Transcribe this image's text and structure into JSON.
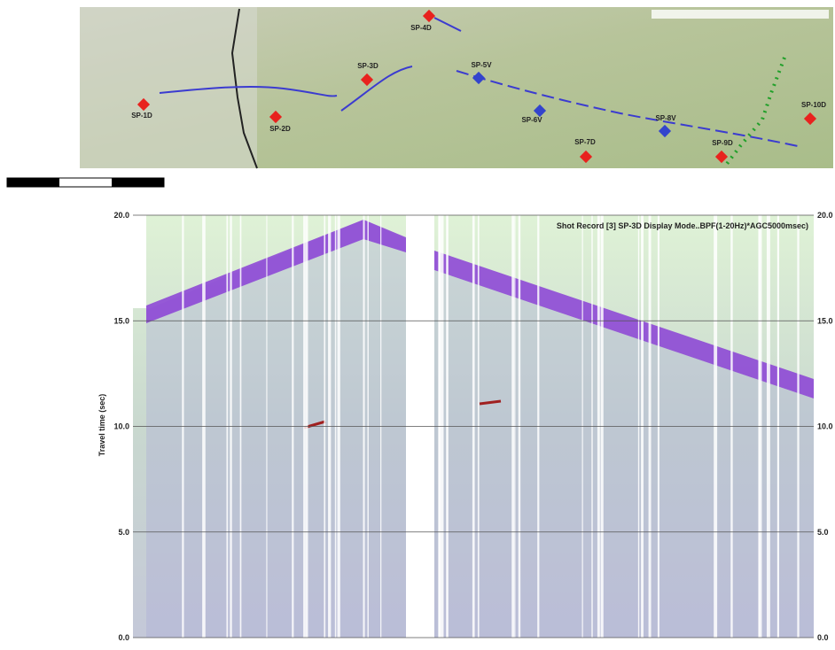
{
  "map": {
    "shot_points": [
      {
        "label": "SP-1D",
        "kind": "D"
      },
      {
        "label": "SP-2D",
        "kind": "D"
      },
      {
        "label": "SP-3D",
        "kind": "D"
      },
      {
        "label": "SP-4D",
        "kind": "D"
      },
      {
        "label": "SP-5V",
        "kind": "V"
      },
      {
        "label": "SP-6V",
        "kind": "V"
      },
      {
        "label": "SP-7D",
        "kind": "D"
      },
      {
        "label": "SP-8V",
        "kind": "V"
      },
      {
        "label": "SP-9D",
        "kind": "D"
      },
      {
        "label": "SP-10D",
        "kind": "D"
      }
    ]
  },
  "chart_data": {
    "type": "seismic",
    "title": "Shot Record [3] SP-3D Display Mode..BPF(1-20Hz)*AGC5000msec)",
    "y_label": "Travel time (sec)",
    "ylim": [
      0,
      20
    ],
    "yticks": [
      {
        "value": 0,
        "label": "0.0"
      },
      {
        "value": 5,
        "label": "5.0"
      },
      {
        "value": 10,
        "label": "10.0"
      },
      {
        "value": 15,
        "label": "15.0"
      },
      {
        "value": 20,
        "label": "20.0"
      }
    ],
    "grid": true
  }
}
